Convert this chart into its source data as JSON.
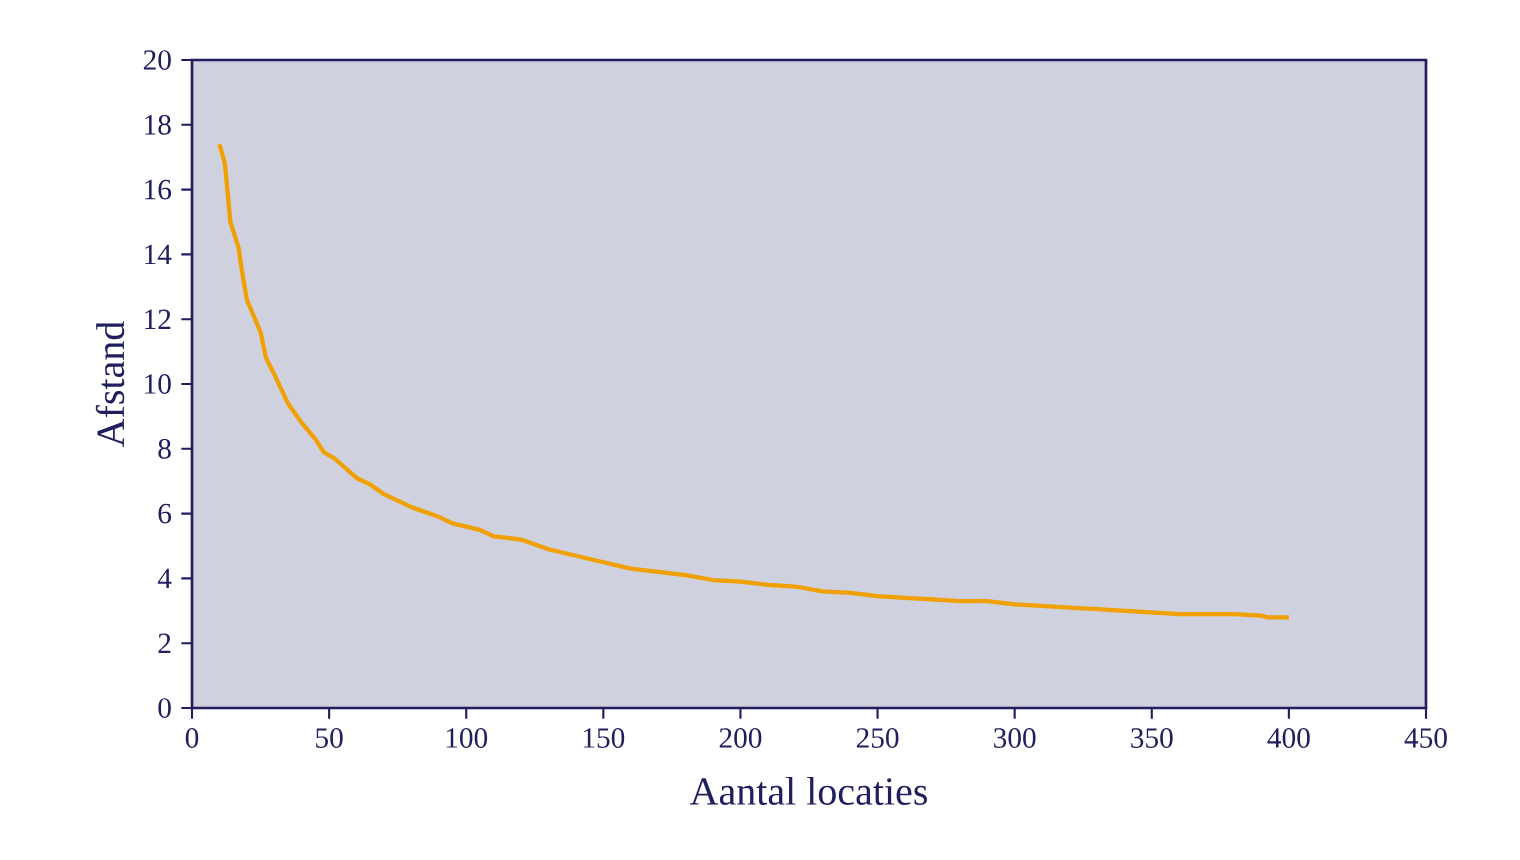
{
  "chart_data": {
    "type": "line",
    "xlabel": "Aantal locaties",
    "ylabel": "Afstand",
    "x": [
      10,
      12,
      14,
      17,
      18,
      20,
      25,
      27,
      30,
      35,
      40,
      45,
      48,
      52,
      60,
      65,
      70,
      80,
      90,
      95,
      105,
      110,
      120,
      130,
      140,
      150,
      160,
      170,
      180,
      190,
      200,
      210,
      220,
      230,
      240,
      250,
      260,
      270,
      280,
      290,
      300,
      310,
      320,
      330,
      340,
      350,
      360,
      380,
      390,
      392,
      400
    ],
    "series": [
      {
        "color": "#f0a000",
        "values": [
          17.4,
          16.8,
          15.0,
          14.2,
          13.6,
          12.6,
          11.6,
          10.8,
          10.3,
          9.4,
          8.8,
          8.3,
          7.9,
          7.7,
          7.1,
          6.9,
          6.6,
          6.2,
          5.9,
          5.7,
          5.5,
          5.3,
          5.2,
          4.9,
          4.7,
          4.5,
          4.3,
          4.2,
          4.1,
          3.95,
          3.9,
          3.8,
          3.75,
          3.6,
          3.55,
          3.45,
          3.4,
          3.35,
          3.3,
          3.3,
          3.2,
          3.15,
          3.1,
          3.05,
          3.0,
          2.95,
          2.9,
          2.9,
          2.85,
          2.8,
          2.8
        ]
      }
    ],
    "xlim": [
      0,
      450
    ],
    "ylim": [
      0,
      20
    ],
    "xticks": [
      0,
      50,
      100,
      150,
      200,
      250,
      300,
      350,
      400,
      450
    ],
    "yticks": [
      0,
      2,
      4,
      6,
      8,
      10,
      12,
      14,
      16,
      18,
      20
    ],
    "marker": "none",
    "line_style": "solid"
  }
}
